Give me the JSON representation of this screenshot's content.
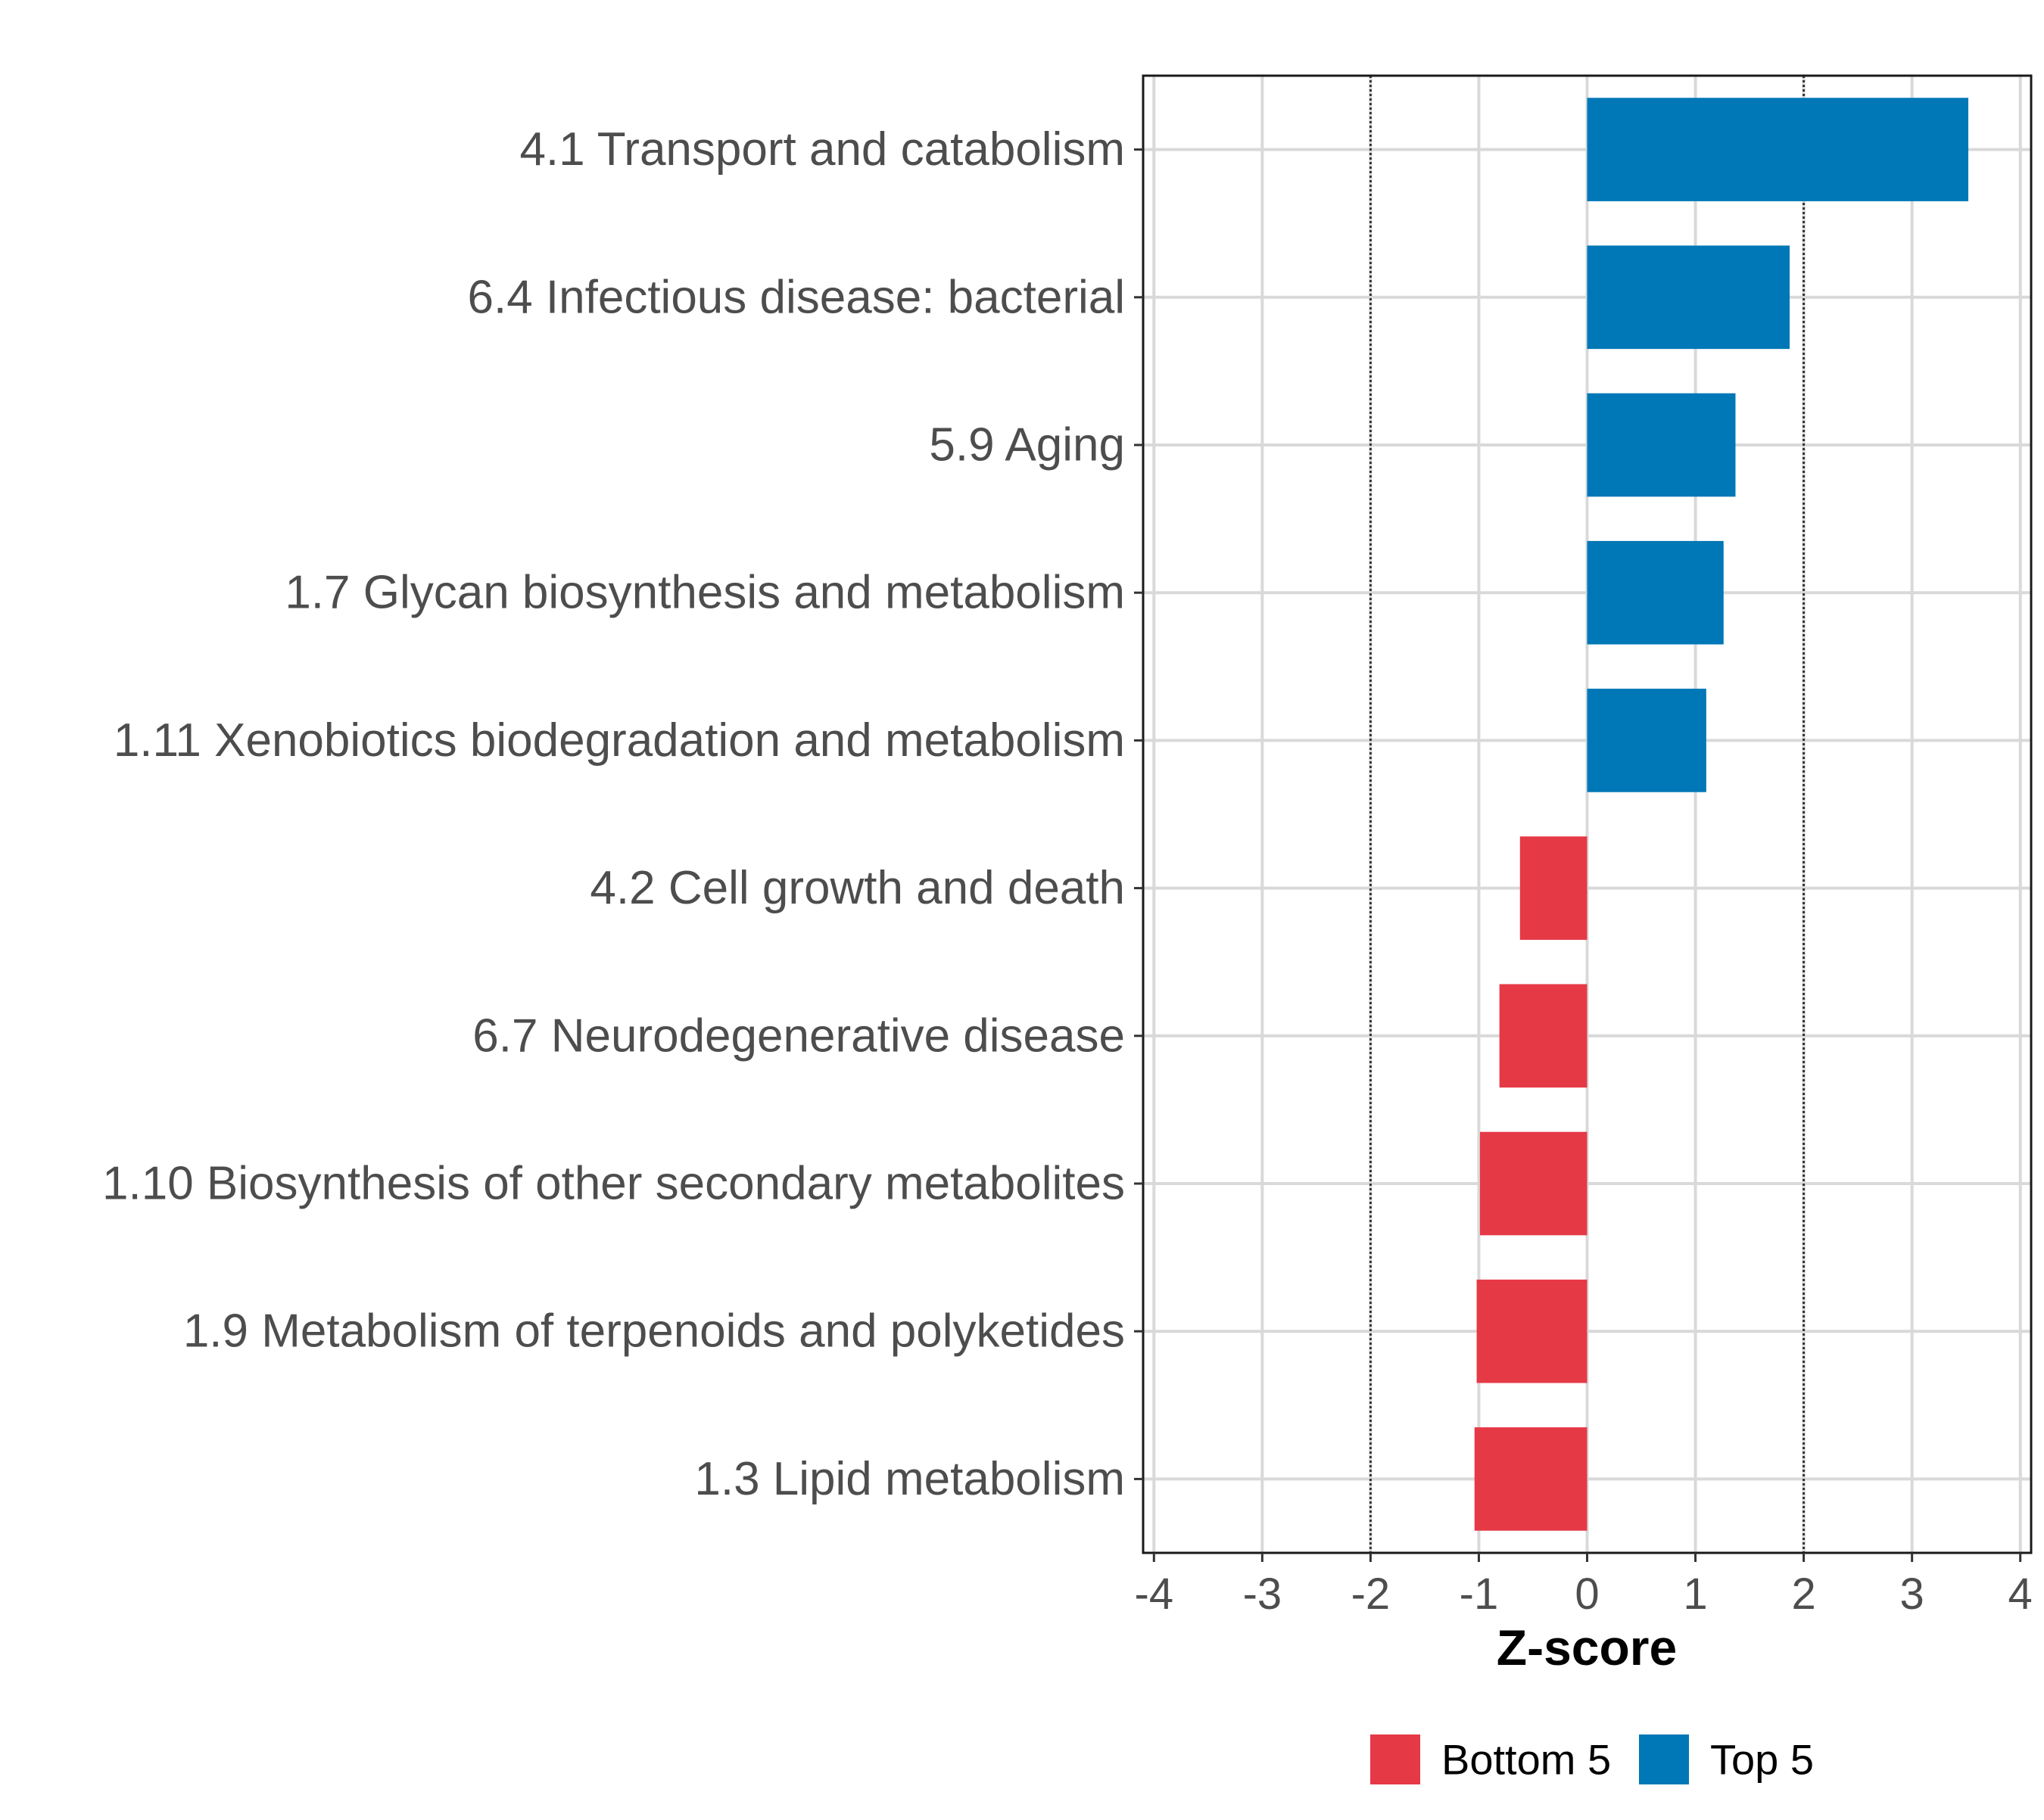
{
  "chart_data": {
    "type": "bar",
    "orientation": "horizontal",
    "title": "",
    "xlabel": "Z-score",
    "ylabel": "",
    "xlim": [
      -4.1,
      4.1
    ],
    "xticks": [
      -4,
      -3,
      -2,
      -1,
      0,
      1,
      2,
      3,
      4
    ],
    "xtick_labels": [
      "-4",
      "-3",
      "-2",
      "-1",
      "0",
      "1",
      "2",
      "3",
      "4"
    ],
    "reference_lines": [
      -2,
      2
    ],
    "grid": true,
    "categories": [
      "4.1 Transport and catabolism",
      "6.4 Infectious disease: bacterial",
      "5.9 Aging",
      "1.7 Glycan biosynthesis and metabolism",
      "1.11 Xenobiotics biodegradation and metabolism",
      "4.2 Cell growth and death",
      "6.7 Neurodegenerative disease",
      "1.10 Biosynthesis of other secondary metabolites",
      "1.9 Metabolism of terpenoids and polyketides",
      "1.3 Lipid metabolism"
    ],
    "values": [
      3.52,
      1.87,
      1.37,
      1.26,
      1.1,
      -0.62,
      -0.81,
      -0.99,
      -1.02,
      -1.04
    ],
    "groups": [
      "Top 5",
      "Top 5",
      "Top 5",
      "Top 5",
      "Top 5",
      "Bottom 5",
      "Bottom 5",
      "Bottom 5",
      "Bottom 5",
      "Bottom 5"
    ],
    "legend": {
      "position": "bottom",
      "entries": [
        {
          "label": "Bottom 5",
          "color": "#E63946"
        },
        {
          "label": "Top 5",
          "color": "#0077B6"
        }
      ]
    }
  }
}
